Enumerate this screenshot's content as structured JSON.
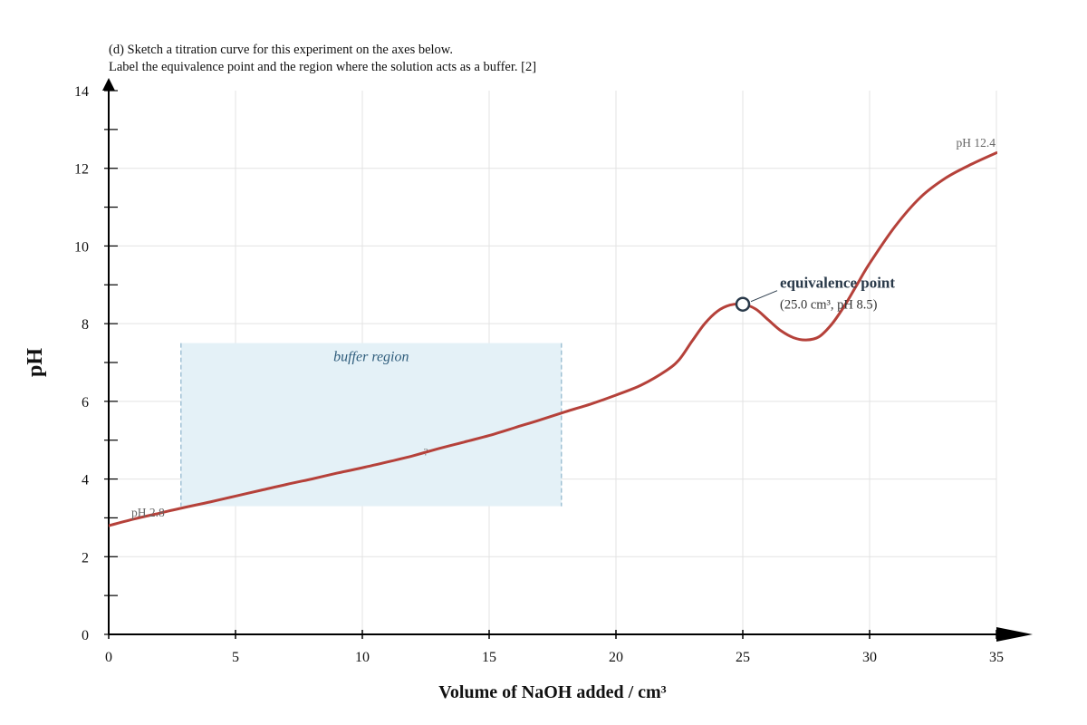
{
  "question": {
    "line1": "(d) Sketch a titration curve for this experiment on the axes below.",
    "line2": "Label the equivalence point and the region where the solution acts as a buffer. [2]"
  },
  "chart_data": {
    "type": "line",
    "title": "",
    "xlabel": "Volume of NaOH added / cm³",
    "ylabel": "pH",
    "xlim": [
      0,
      35
    ],
    "ylim": [
      0,
      14
    ],
    "x_ticks": [
      0,
      5,
      10,
      15,
      20,
      25,
      30,
      35
    ],
    "y_ticks": [
      0,
      2,
      4,
      6,
      8,
      10,
      12,
      14
    ],
    "y_minor_step": 1,
    "grid": true,
    "series": [
      {
        "name": "",
        "color": "#b5413a",
        "points": [
          [
            0,
            2.8
          ],
          [
            1,
            2.97
          ],
          [
            2,
            3.12
          ],
          [
            3,
            3.27
          ],
          [
            4,
            3.41
          ],
          [
            5,
            3.56
          ],
          [
            6,
            3.71
          ],
          [
            7,
            3.86
          ],
          [
            8,
            4.0
          ],
          [
            9,
            4.15
          ],
          [
            10,
            4.29
          ],
          [
            11,
            4.44
          ],
          [
            12,
            4.6
          ],
          [
            13,
            4.78
          ],
          [
            14,
            4.95
          ],
          [
            15,
            5.12
          ],
          [
            16,
            5.32
          ],
          [
            17,
            5.52
          ],
          [
            18,
            5.73
          ],
          [
            19,
            5.93
          ],
          [
            20,
            6.16
          ],
          [
            21,
            6.42
          ],
          [
            22,
            6.8
          ],
          [
            22.5,
            7.08
          ],
          [
            23,
            7.55
          ],
          [
            23.5,
            8.0
          ],
          [
            24,
            8.32
          ],
          [
            24.5,
            8.48
          ],
          [
            25,
            8.5
          ],
          [
            25.5,
            8.38
          ],
          [
            26,
            8.1
          ],
          [
            26.5,
            7.82
          ],
          [
            27,
            7.64
          ],
          [
            27.5,
            7.58
          ],
          [
            28,
            7.66
          ],
          [
            28.5,
            7.98
          ],
          [
            29,
            8.45
          ],
          [
            29.5,
            9.0
          ],
          [
            30,
            9.55
          ],
          [
            31,
            10.5
          ],
          [
            32,
            11.25
          ],
          [
            33,
            11.75
          ],
          [
            34,
            12.1
          ],
          [
            35,
            12.4
          ]
        ]
      }
    ],
    "annotations": {
      "start_label": "pH 2.8",
      "end_label": "pH 12.4",
      "equivalence_title": "equivalence point",
      "equivalence_coords": "(25.0 cm³, pH 8.5)",
      "equivalence_point": [
        25,
        8.5
      ],
      "buffer_label": "buffer region",
      "buffer_x": [
        2.85,
        17.85
      ],
      "buffer_y": [
        3.3,
        7.5
      ],
      "half_equivalence_mark": "?",
      "half_equivalence_point": [
        12.5,
        4.7
      ]
    },
    "colors": {
      "curve": "#b5413a",
      "buffer_fill": "#e4f1f7",
      "buffer_edge": "#8db5cc",
      "buffer_text": "#2f5d7c",
      "equivalence_text": "#2a3a4a",
      "grid": "#e3e3e3",
      "axis": "#000000"
    }
  }
}
